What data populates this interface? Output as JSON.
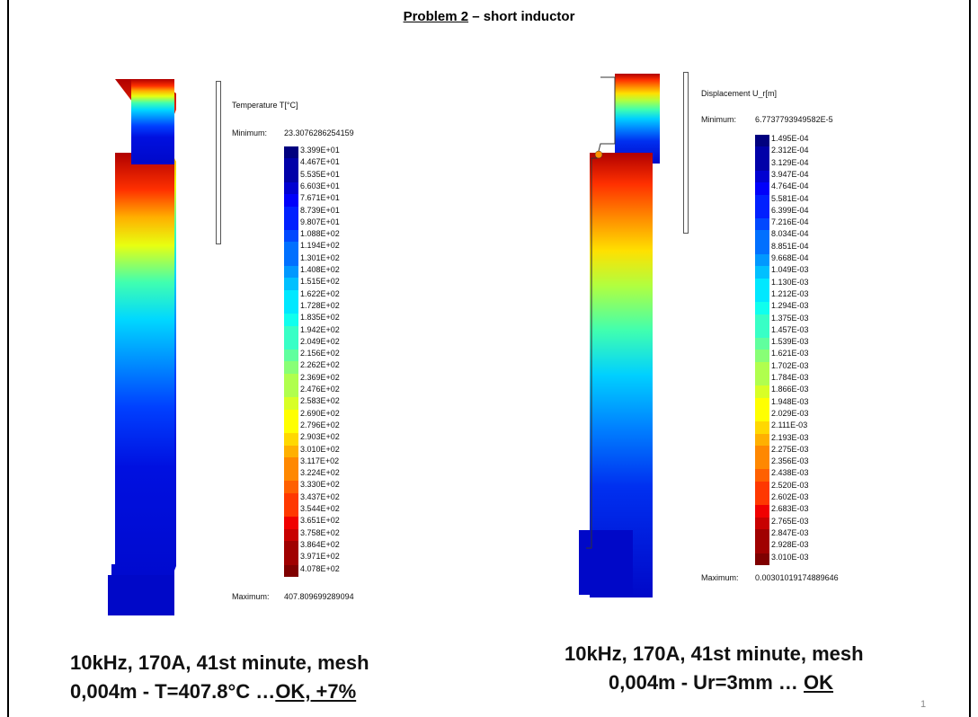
{
  "slide": {
    "title_part1": "Problem 2",
    "title_part2": " – short inductor",
    "page_number": "1"
  },
  "left_panel": {
    "label": "Temperature T[°C]",
    "minimum_label": "Minimum:",
    "minimum_value": "23.3076286254159",
    "maximum_label": "Maximum:",
    "maximum_value": "407.809699289094",
    "legend": [
      "3.399E+01",
      "4.467E+01",
      "5.535E+01",
      "6.603E+01",
      "7.671E+01",
      "8.739E+01",
      "9.807E+01",
      "1.088E+02",
      "1.194E+02",
      "1.301E+02",
      "1.408E+02",
      "1.515E+02",
      "1.622E+02",
      "1.728E+02",
      "1.835E+02",
      "1.942E+02",
      "2.049E+02",
      "2.156E+02",
      "2.262E+02",
      "2.369E+02",
      "2.476E+02",
      "2.583E+02",
      "2.690E+02",
      "2.796E+02",
      "2.903E+02",
      "3.010E+02",
      "3.117E+02",
      "3.224E+02",
      "3.330E+02",
      "3.437E+02",
      "3.544E+02",
      "3.651E+02",
      "3.758E+02",
      "3.864E+02",
      "3.971E+02",
      "4.078E+02"
    ],
    "caption_line1": "10kHz, 170A, 41st minute, mesh",
    "caption_line2_prefix": "0,004m - T=407.8°C …",
    "caption_line2_ok": "OK, +7%"
  },
  "right_panel": {
    "label": "Displacement U_r[m]",
    "minimum_label": "Minimum:",
    "minimum_value": "6.7737793949582E-5",
    "maximum_label": "Maximum:",
    "maximum_value": "0.00301019174889646",
    "legend": [
      "1.495E-04",
      "2.312E-04",
      "3.129E-04",
      "3.947E-04",
      "4.764E-04",
      "5.581E-04",
      "6.399E-04",
      "7.216E-04",
      "8.034E-04",
      "8.851E-04",
      "9.668E-04",
      "1.049E-03",
      "1.130E-03",
      "1.212E-03",
      "1.294E-03",
      "1.375E-03",
      "1.457E-03",
      "1.539E-03",
      "1.621E-03",
      "1.702E-03",
      "1.784E-03",
      "1.866E-03",
      "1.948E-03",
      "2.029E-03",
      "2.111E-03",
      "2.193E-03",
      "2.275E-03",
      "2.356E-03",
      "2.438E-03",
      "2.520E-03",
      "2.602E-03",
      "2.683E-03",
      "2.765E-03",
      "2.847E-03",
      "2.928E-03",
      "3.010E-03"
    ],
    "caption_line1": "10kHz, 170A, 41st minute, mesh",
    "caption_line2_prefix": "0,004m - Ur=3mm … ",
    "caption_line2_ok": "OK"
  },
  "colormap": [
    "#00007f",
    "#0000a8",
    "#0000d1",
    "#0000fa",
    "#0020ff",
    "#0048ff",
    "#0070ff",
    "#0098ff",
    "#00c0ff",
    "#00e8ff",
    "#10ffee",
    "#38ffc6",
    "#60ff9e",
    "#88ff76",
    "#b0ff4e",
    "#d8ff26",
    "#ffff00",
    "#ffd800",
    "#ffb000",
    "#ff8800",
    "#ff6000",
    "#ff3800",
    "#f00000",
    "#c80000",
    "#a00000",
    "#7f0000"
  ]
}
